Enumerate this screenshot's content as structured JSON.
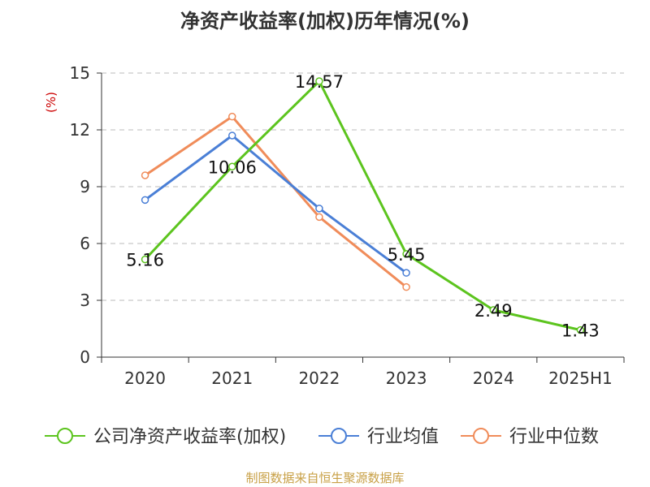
{
  "chart_data": {
    "type": "line",
    "title": "净资产收益率(加权)历年情况(%)",
    "ylabel": "(%)",
    "categories": [
      "2020",
      "2021",
      "2022",
      "2023",
      "2024",
      "2025H1"
    ],
    "yticks": [
      0,
      3,
      6,
      9,
      12,
      15
    ],
    "ylim": [
      0,
      15
    ],
    "grid": "horizontal-dashed",
    "legend_position": "bottom",
    "series": [
      {
        "name": "公司净资产收益率(加权)",
        "color": "#5cc41e",
        "values": [
          5.16,
          10.06,
          14.57,
          5.45,
          2.49,
          1.43
        ],
        "labels": [
          "5.16",
          "10.06",
          "14.57",
          "5.45",
          "2.49",
          "1.43"
        ]
      },
      {
        "name": "行业均值",
        "color": "#4a7fd6",
        "values": [
          8.3,
          11.7,
          7.85,
          4.45,
          null,
          null
        ]
      },
      {
        "name": "行业中位数",
        "color": "#f08c5a",
        "values": [
          9.6,
          12.7,
          7.4,
          3.7,
          null,
          null
        ]
      }
    ],
    "ylabel_color": "#cc0000"
  },
  "source": "制图数据来自恒生聚源数据库"
}
